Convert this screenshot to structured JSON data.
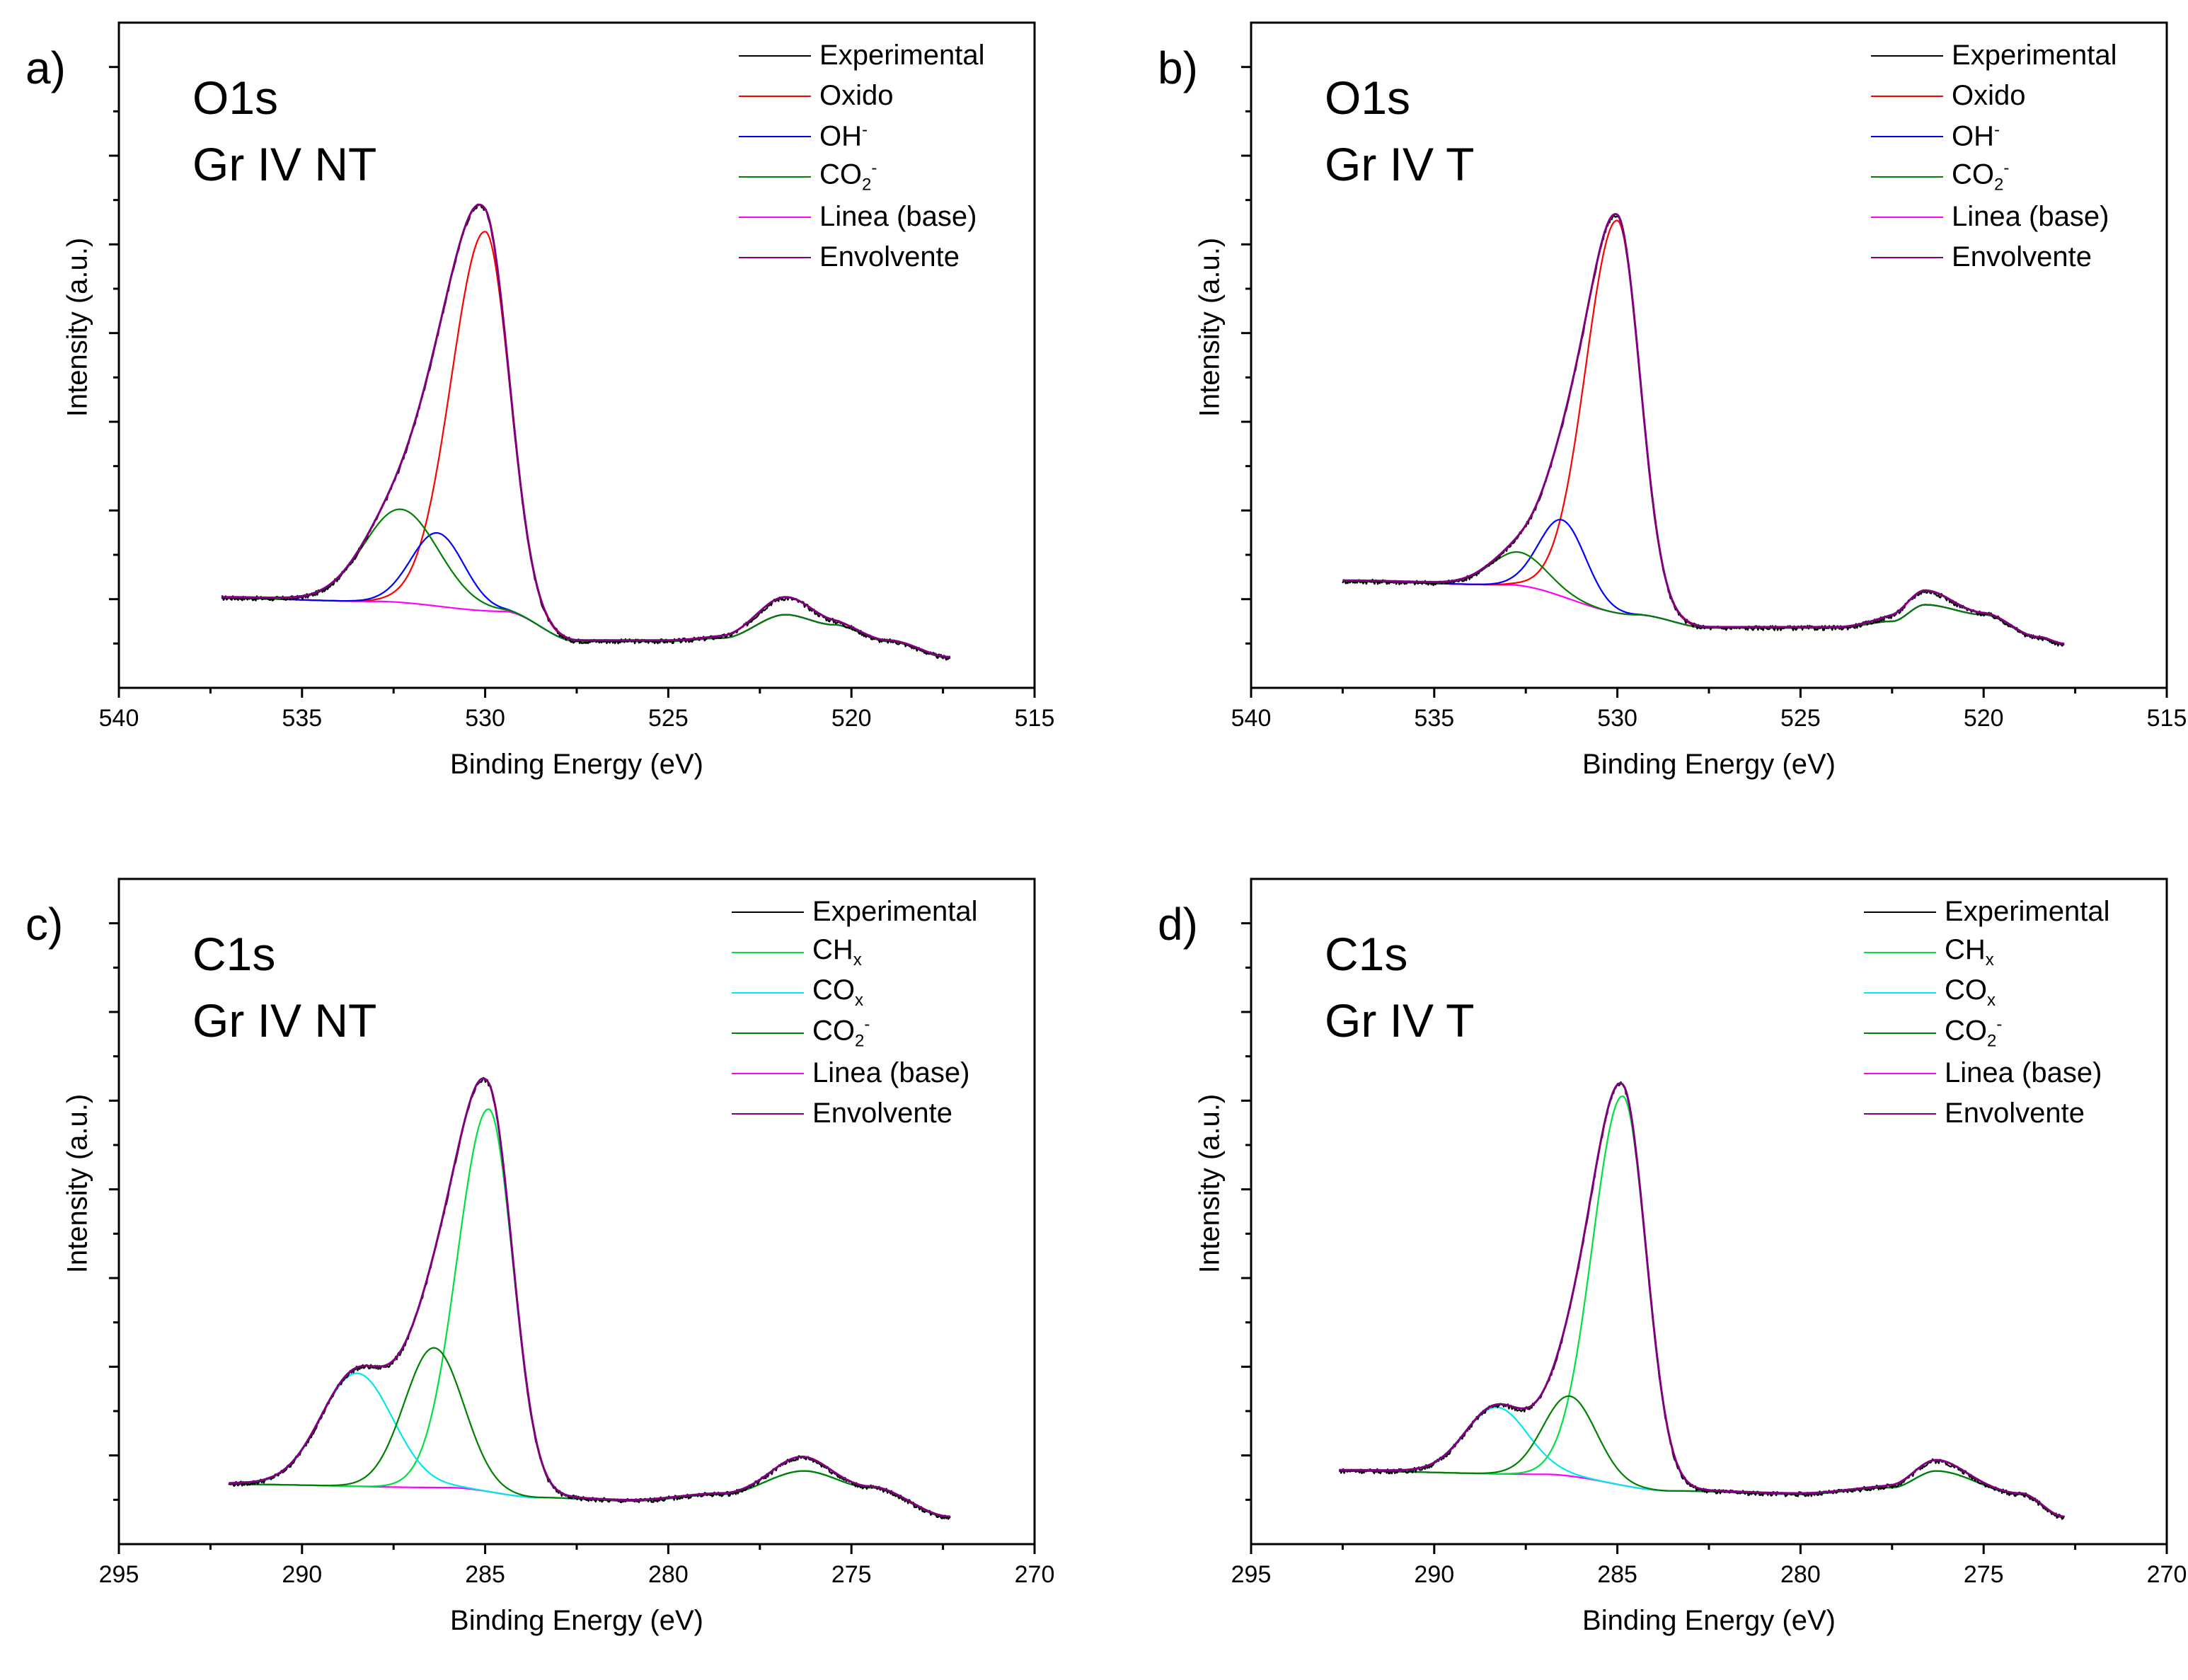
{
  "chart_data": [
    {
      "id": "a",
      "type": "line",
      "panel_letter": "a)",
      "title_lines": [
        "O1s",
        "Gr IV NT"
      ],
      "xlabel": "Binding Energy (eV)",
      "ylabel": "Intensity (a.u.)",
      "xlim": [
        540,
        515
      ],
      "ylim": [
        0,
        100
      ],
      "x_ticks": [
        540,
        535,
        530,
        525,
        520,
        515
      ],
      "x_tick_labels": [
        "540",
        "535",
        "530",
        "525",
        "520",
        "515"
      ],
      "x_range": [
        537.2,
        517.3
      ],
      "legend": [
        "Experimental",
        "Oxido",
        "OH⁻",
        "CO₂⁻",
        "Linea (base)",
        "Envolvente"
      ],
      "series": [
        {
          "name": "Experimental",
          "color": "#000000",
          "kind": "total",
          "noise": 0.35
        },
        {
          "name": "Oxido",
          "color": "#ff0000",
          "kind": "peak",
          "center": 530.0,
          "fwhm": 1.55,
          "height": 57,
          "tail": 0.4
        },
        {
          "name": "OH⁻",
          "color": "#0000ff",
          "kind": "peak",
          "center": 531.3,
          "fwhm": 1.7,
          "height": 11,
          "tail": 0
        },
        {
          "name": "CO₂⁻",
          "color": "#008000",
          "kind": "peak",
          "center": 532.3,
          "fwhm": 2.4,
          "height": 14,
          "tail": 0
        },
        {
          "name": "Linea (base)",
          "color": "#ff00ff",
          "kind": "baseline"
        },
        {
          "name": "Envolvente",
          "color": "#800080",
          "kind": "envelope"
        }
      ],
      "baseline_points": [
        [
          537.2,
          13.5
        ],
        [
          533.0,
          13.0
        ],
        [
          529.5,
          11.5
        ],
        [
          527.5,
          7.0
        ],
        [
          525.0,
          7.0
        ],
        [
          523.5,
          7.5
        ],
        [
          521.8,
          11.0
        ],
        [
          520.5,
          9.5
        ],
        [
          519.0,
          7.0
        ],
        [
          517.3,
          4.5
        ]
      ],
      "background_features": [
        {
          "center": 521.8,
          "fwhm": 1.8,
          "height": 2.5
        }
      ]
    },
    {
      "id": "b",
      "type": "line",
      "panel_letter": "b)",
      "title_lines": [
        "O1s",
        "Gr IV T"
      ],
      "xlabel": "Binding Energy (eV)",
      "ylabel": "Intensity (a.u.)",
      "xlim": [
        540,
        515
      ],
      "ylim": [
        0,
        100
      ],
      "x_ticks": [
        540,
        535,
        530,
        525,
        520,
        515
      ],
      "x_tick_labels": [
        "540",
        "535",
        "530",
        "525",
        "520",
        "515"
      ],
      "x_range": [
        537.5,
        517.8
      ],
      "legend": [
        "Experimental",
        "Oxido",
        "OH⁻",
        "CO₂⁻",
        "Linea (base)",
        "Envolvente"
      ],
      "series": [
        {
          "name": "Experimental",
          "color": "#000000",
          "kind": "total",
          "noise": 0.35
        },
        {
          "name": "Oxido",
          "color": "#ff0000",
          "kind": "peak",
          "center": 530.0,
          "fwhm": 1.45,
          "height": 59,
          "tail": 0.4
        },
        {
          "name": "OH⁻",
          "color": "#0000ff",
          "kind": "peak",
          "center": 531.5,
          "fwhm": 1.5,
          "height": 11.5,
          "tail": 0
        },
        {
          "name": "CO₂⁻",
          "color": "#008000",
          "kind": "peak",
          "center": 532.7,
          "fwhm": 1.8,
          "height": 5,
          "tail": 0
        },
        {
          "name": "Linea (base)",
          "color": "#ff00ff",
          "kind": "baseline"
        },
        {
          "name": "Envolvente",
          "color": "#800080",
          "kind": "envelope"
        }
      ],
      "baseline_points": [
        [
          537.5,
          16.0
        ],
        [
          533.0,
          15.5
        ],
        [
          529.5,
          11.0
        ],
        [
          527.5,
          9.0
        ],
        [
          524.0,
          9.0
        ],
        [
          522.5,
          10.0
        ],
        [
          521.6,
          12.5
        ],
        [
          520.0,
          11.0
        ],
        [
          518.5,
          7.5
        ],
        [
          517.8,
          6.5
        ]
      ],
      "background_features": [
        {
          "center": 521.6,
          "fwhm": 1.6,
          "height": 2.0
        }
      ]
    },
    {
      "id": "c",
      "type": "line",
      "panel_letter": "c)",
      "title_lines": [
        "C1s",
        "Gr IV NT"
      ],
      "xlabel": "Binding Energy (eV)",
      "ylabel": "Intensity (a.u.)",
      "xlim": [
        295,
        270
      ],
      "ylim": [
        0,
        100
      ],
      "x_ticks": [
        295,
        290,
        285,
        280,
        275,
        270
      ],
      "x_tick_labels": [
        "295",
        "290",
        "285",
        "280",
        "275",
        "270"
      ],
      "x_range": [
        292.0,
        272.3
      ],
      "legend": [
        "Experimental",
        "CHₓ",
        "COₓ",
        "CO₂⁻",
        "Linea (base)",
        "Envolvente"
      ],
      "series": [
        {
          "name": "Experimental",
          "color": "#000000",
          "kind": "total",
          "noise": 0.35
        },
        {
          "name": "CHₓ",
          "color": "#00e040",
          "kind": "peak",
          "center": 284.9,
          "fwhm": 1.55,
          "height": 57.5,
          "tail": 0.3
        },
        {
          "name": "COₓ",
          "color": "#00e5ee",
          "kind": "peak",
          "center": 288.5,
          "fwhm": 2.3,
          "height": 17,
          "tail": 0
        },
        {
          "name": "CO₂⁻",
          "color": "#008000",
          "kind": "peak",
          "center": 286.4,
          "fwhm": 1.9,
          "height": 21,
          "tail": 0
        },
        {
          "name": "Linea (base)",
          "color": "#ff00ff",
          "kind": "baseline"
        },
        {
          "name": "Envolvente",
          "color": "#800080",
          "kind": "envelope"
        }
      ],
      "baseline_points": [
        [
          292.0,
          9.0
        ],
        [
          286.0,
          8.5
        ],
        [
          283.5,
          7.0
        ],
        [
          281.0,
          6.5
        ],
        [
          278.5,
          7.5
        ],
        [
          276.3,
          11.0
        ],
        [
          274.5,
          8.5
        ],
        [
          272.3,
          4.0
        ]
      ],
      "background_features": [
        {
          "center": 276.4,
          "fwhm": 1.6,
          "height": 2.0
        }
      ]
    },
    {
      "id": "d",
      "type": "line",
      "panel_letter": "d)",
      "title_lines": [
        "C1s",
        "Gr IV T"
      ],
      "xlabel": "Binding Energy (eV)",
      "ylabel": "Intensity (a.u.)",
      "xlim": [
        295,
        270
      ],
      "ylim": [
        0,
        100
      ],
      "x_ticks": [
        295,
        290,
        285,
        280,
        275,
        270
      ],
      "x_tick_labels": [
        "295",
        "290",
        "285",
        "280",
        "275",
        "270"
      ],
      "x_range": [
        292.6,
        272.8
      ],
      "legend": [
        "Experimental",
        "CHₓ",
        "COₓ",
        "CO₂⁻",
        "Linea (base)",
        "Envolvente"
      ],
      "series": [
        {
          "name": "Experimental",
          "color": "#000000",
          "kind": "total",
          "noise": 0.35
        },
        {
          "name": "CHₓ",
          "color": "#00e040",
          "kind": "peak",
          "center": 284.85,
          "fwhm": 1.5,
          "height": 58.5,
          "tail": 0.3
        },
        {
          "name": "COₓ",
          "color": "#00e5ee",
          "kind": "peak",
          "center": 288.3,
          "fwhm": 2.0,
          "height": 10,
          "tail": 0
        },
        {
          "name": "CO₂⁻",
          "color": "#008000",
          "kind": "peak",
          "center": 286.3,
          "fwhm": 1.7,
          "height": 12,
          "tail": 0
        },
        {
          "name": "Linea (base)",
          "color": "#ff00ff",
          "kind": "baseline"
        },
        {
          "name": "Envolvente",
          "color": "#800080",
          "kind": "envelope"
        }
      ],
      "baseline_points": [
        [
          292.6,
          11.0
        ],
        [
          287.0,
          10.5
        ],
        [
          283.5,
          8.0
        ],
        [
          280.0,
          7.5
        ],
        [
          277.5,
          8.5
        ],
        [
          276.3,
          11.0
        ],
        [
          274.0,
          7.5
        ],
        [
          272.8,
          4.0
        ]
      ],
      "background_features": [
        {
          "center": 276.3,
          "fwhm": 1.5,
          "height": 1.5
        }
      ]
    }
  ]
}
